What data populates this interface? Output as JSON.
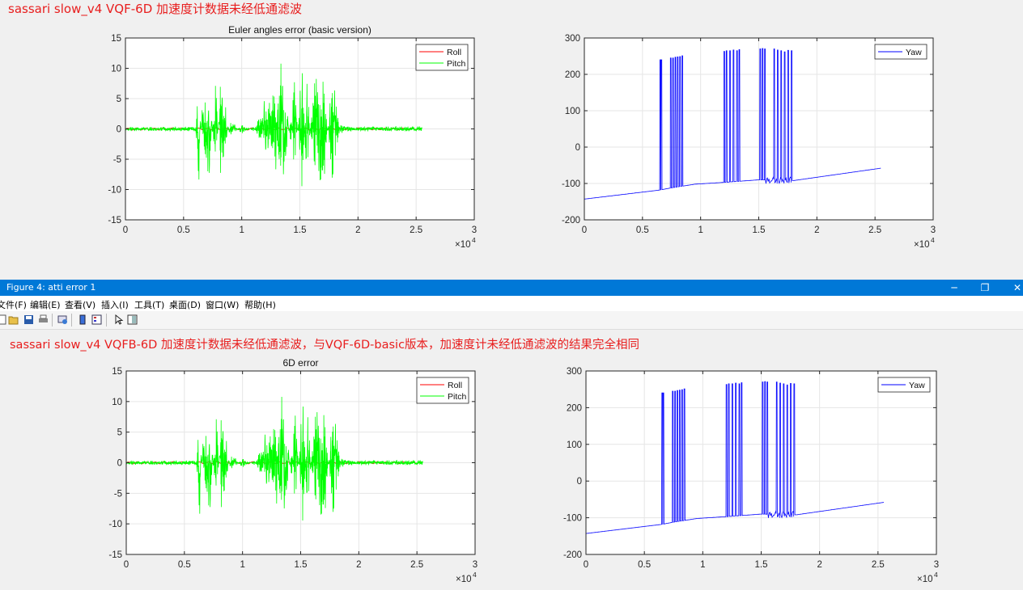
{
  "headings": {
    "top": "sassari slow_v4 VQF-6D 加速度计数据未经低通滤波",
    "bottom": "sassari slow_v4 VQFB-6D 加速度计数据未经低通滤波，与VQF-6D-basic版本，加速度计未经低通滤波的结果完全相同"
  },
  "window": {
    "title": "Figure 4: atti error 1",
    "minimize_glyph": "─",
    "restore_glyph": "❐",
    "close_glyph": "✕"
  },
  "menu": {
    "items": [
      "文件(F)",
      "编辑(E)",
      "查看(V)",
      "插入(I)",
      "工具(T)",
      "桌面(D)",
      "窗口(W)",
      "帮助(H)"
    ]
  },
  "toolbar": {
    "icons": [
      "new-figure-icon",
      "open-file-icon",
      "save-icon",
      "print-icon",
      "link-figure-icon",
      "insert-colorbar-icon",
      "insert-legend-icon",
      "pointer-icon",
      "property-inspector-icon"
    ]
  },
  "colors": {
    "roll": "#ff0000",
    "pitch": "#00ff00",
    "yaw": "#0000ff",
    "heading": "#e81e1e",
    "titlebar": "#0078d7"
  },
  "chart_data": [
    {
      "id": "top-left",
      "type": "line",
      "title": "Euler angles error (basic version)",
      "xlim": [
        0,
        30000
      ],
      "ylim": [
        -15,
        15
      ],
      "xticks": [
        0,
        0.5,
        1,
        1.5,
        2,
        2.5,
        3
      ],
      "yticks": [
        15,
        10,
        5,
        0,
        -5,
        -10,
        -15
      ],
      "x_exponent": "×10",
      "x_exponent_power": "4",
      "grid": true,
      "legend_position": "top-right",
      "legend": [
        "Roll",
        "Pitch"
      ],
      "series": [
        {
          "name": "Roll",
          "x": [
            0,
            500,
            2500,
            6000,
            10000,
            14000,
            18000,
            25500
          ],
          "y": [
            0.2,
            0.1,
            -0.1,
            0.0,
            0.1,
            -0.1,
            0.0,
            0.1
          ]
        },
        {
          "name": "Pitch",
          "x": [
            0,
            6000,
            6300,
            6600,
            7200,
            7800,
            8200,
            8600,
            9000,
            10000,
            11000,
            12000,
            13000,
            13500,
            14500,
            15200,
            15600,
            16200,
            17000,
            17800,
            18500,
            19500,
            25500
          ],
          "y": [
            0.3,
            0.5,
            -10.5,
            6,
            9,
            -9,
            12,
            4,
            -2,
            1,
            -0.5,
            5,
            8,
            14,
            -10,
            13,
            -12,
            12,
            11,
            -11,
            1,
            0.4,
            0.5
          ]
        }
      ]
    },
    {
      "id": "top-right",
      "type": "line",
      "title": "",
      "xlim": [
        0,
        30000
      ],
      "ylim": [
        -200,
        300
      ],
      "xticks": [
        0,
        0.5,
        1,
        1.5,
        2,
        2.5,
        3
      ],
      "yticks": [
        300,
        200,
        100,
        0,
        -100,
        -200
      ],
      "x_exponent": "×10",
      "x_exponent_power": "4",
      "grid": true,
      "legend_position": "top-right",
      "legend": [
        "Yaw"
      ],
      "series": [
        {
          "name": "Yaw",
          "x": [
            0,
            6500,
            7500,
            9500,
            12000,
            15000,
            18000,
            25500
          ],
          "y": [
            -143,
            -118,
            -112,
            -102,
            -97,
            -90,
            -92,
            -58
          ],
          "spikes": [
            6500,
            6600,
            7400,
            7600,
            7800,
            8000,
            8200,
            8400,
            12000,
            12200,
            12500,
            12800,
            13100,
            13300,
            15100,
            15300,
            15500,
            16300,
            16600,
            16900,
            17200,
            17500,
            17800
          ],
          "spike_top": [
            240,
            240,
            245,
            245,
            247,
            248,
            249,
            251,
            263,
            265,
            265,
            267,
            265,
            268,
            270,
            271,
            270,
            270,
            267,
            265,
            262,
            266,
            265
          ]
        }
      ]
    },
    {
      "id": "bottom-left",
      "type": "line",
      "title": "6D error",
      "xlim": [
        0,
        30000
      ],
      "ylim": [
        -15,
        15
      ],
      "xticks": [
        0,
        0.5,
        1,
        1.5,
        2,
        2.5,
        3
      ],
      "yticks": [
        15,
        10,
        5,
        0,
        -5,
        -10,
        -15
      ],
      "x_exponent": "×10",
      "x_exponent_power": "4",
      "grid": true,
      "legend_position": "top-right",
      "legend": [
        "Roll",
        "Pitch"
      ],
      "series": [
        {
          "name": "Roll",
          "x": [
            0,
            500,
            2500,
            6000,
            10000,
            14000,
            18000,
            25500
          ],
          "y": [
            0.2,
            0.1,
            -0.1,
            0.0,
            0.1,
            -0.1,
            0.0,
            0.1
          ]
        },
        {
          "name": "Pitch",
          "x": [
            0,
            6000,
            6300,
            6600,
            7200,
            7800,
            8200,
            8600,
            9000,
            10000,
            11000,
            12000,
            13000,
            13500,
            14500,
            15200,
            15600,
            16200,
            17000,
            17800,
            18500,
            19500,
            25500
          ],
          "y": [
            0.3,
            0.5,
            -10.5,
            6,
            9,
            -9,
            12,
            4,
            -2,
            1,
            -0.5,
            5,
            8,
            14,
            -10,
            13,
            -12,
            12,
            11,
            -11,
            1,
            0.4,
            0.5
          ]
        }
      ]
    },
    {
      "id": "bottom-right",
      "type": "line",
      "title": "",
      "xlim": [
        0,
        30000
      ],
      "ylim": [
        -200,
        300
      ],
      "xticks": [
        0,
        0.5,
        1,
        1.5,
        2,
        2.5,
        3
      ],
      "yticks": [
        300,
        200,
        100,
        0,
        -100,
        -200
      ],
      "x_exponent": "×10",
      "x_exponent_power": "4",
      "grid": true,
      "legend_position": "top-right",
      "legend": [
        "Yaw"
      ],
      "series": [
        {
          "name": "Yaw",
          "x": [
            0,
            6500,
            7500,
            9500,
            12000,
            15000,
            18000,
            25500
          ],
          "y": [
            -143,
            -118,
            -112,
            -102,
            -97,
            -90,
            -92,
            -58
          ],
          "spikes": [
            6500,
            6600,
            7400,
            7600,
            7800,
            8000,
            8200,
            8400,
            12000,
            12200,
            12500,
            12800,
            13100,
            13300,
            15100,
            15300,
            15500,
            16300,
            16600,
            16900,
            17200,
            17500,
            17800
          ],
          "spike_top": [
            240,
            240,
            245,
            245,
            247,
            248,
            249,
            251,
            263,
            265,
            265,
            267,
            265,
            268,
            270,
            271,
            270,
            270,
            267,
            265,
            262,
            266,
            265
          ]
        }
      ]
    }
  ]
}
